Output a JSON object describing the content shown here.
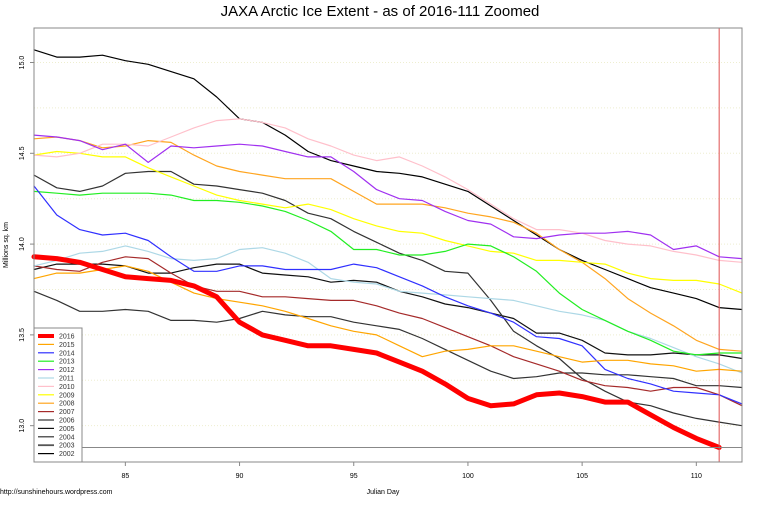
{
  "chart_data": {
    "type": "line",
    "title": "JAXA Arctic Ice Extent - as of 2016-111 Zoomed",
    "xlabel": "Julian Day",
    "ylabel": "Millions sq. km",
    "source_note": "http://sunshinehours.wordpress.com",
    "xlim": [
      81,
      112
    ],
    "ylim": [
      12.8,
      15.19
    ],
    "x_ticks": [
      85,
      90,
      95,
      100,
      105,
      110
    ],
    "x_tick_labels": [
      "85",
      "90",
      "95",
      "100",
      "105",
      "110"
    ],
    "y_ticks": [
      13.0,
      13.5,
      14.0,
      14.5,
      15.0
    ],
    "y_tick_labels": [
      "13.0",
      "13.5",
      "14.0",
      "14.5",
      "15.0"
    ],
    "grid": "horizontal dotted every 0.25",
    "current_day_marker": 111,
    "current_value_marker": 12.88,
    "marker_color": "#E05050",
    "legend_placement": "bottom-left",
    "x_start": 81,
    "series": [
      {
        "name": "2016",
        "color": "#FF0000",
        "width": 5,
        "values": [
          13.93,
          13.92,
          13.9,
          13.86,
          13.82,
          13.81,
          13.8,
          13.77,
          13.71,
          13.57,
          13.5,
          13.47,
          13.44,
          13.44,
          13.42,
          13.4,
          13.35,
          13.3,
          13.23,
          13.15,
          13.11,
          13.12,
          13.17,
          13.18,
          13.16,
          13.13,
          13.13,
          13.06,
          12.99,
          12.93,
          12.88
        ]
      },
      {
        "name": "2015",
        "color": "#FFA500",
        "width": 1.2,
        "values": [
          13.81,
          13.84,
          13.84,
          13.86,
          13.88,
          13.85,
          13.79,
          13.73,
          13.7,
          13.68,
          13.66,
          13.63,
          13.59,
          13.55,
          13.52,
          13.5,
          13.44,
          13.38,
          13.41,
          13.42,
          13.44,
          13.44,
          13.41,
          13.38,
          13.35,
          13.36,
          13.36,
          13.34,
          13.33,
          13.3,
          13.31,
          13.3
        ]
      },
      {
        "name": "2014",
        "color": "#3030FF",
        "width": 1.2,
        "values": [
          14.32,
          14.16,
          14.08,
          14.05,
          14.06,
          14.02,
          13.93,
          13.85,
          13.85,
          13.88,
          13.88,
          13.86,
          13.86,
          13.86,
          13.89,
          13.87,
          13.82,
          13.77,
          13.71,
          13.66,
          13.62,
          13.57,
          13.49,
          13.48,
          13.44,
          13.31,
          13.26,
          13.23,
          13.19,
          13.18,
          13.17,
          13.12
        ]
      },
      {
        "name": "2013",
        "color": "#22EE22",
        "width": 1.2,
        "values": [
          14.29,
          14.28,
          14.27,
          14.28,
          14.28,
          14.28,
          14.27,
          14.24,
          14.24,
          14.23,
          14.21,
          14.18,
          14.13,
          14.07,
          13.97,
          13.97,
          13.94,
          13.94,
          13.96,
          14.0,
          13.99,
          13.93,
          13.85,
          13.73,
          13.64,
          13.58,
          13.52,
          13.47,
          13.41,
          13.39,
          13.4,
          13.4
        ]
      },
      {
        "name": "2012",
        "color": "#A030F0",
        "width": 1.2,
        "values": [
          14.6,
          14.59,
          14.57,
          14.52,
          14.55,
          14.45,
          14.54,
          14.53,
          14.54,
          14.55,
          14.54,
          14.51,
          14.48,
          14.48,
          14.4,
          14.3,
          14.25,
          14.24,
          14.18,
          14.13,
          14.11,
          14.04,
          14.03,
          14.05,
          14.06,
          14.06,
          14.07,
          14.05,
          13.97,
          13.99,
          13.93,
          13.92
        ]
      },
      {
        "name": "2011",
        "color": "#ADD8E6",
        "width": 1.2,
        "values": [
          13.88,
          13.91,
          13.95,
          13.96,
          13.99,
          13.96,
          13.92,
          13.91,
          13.92,
          13.97,
          13.98,
          13.95,
          13.9,
          13.81,
          13.79,
          13.78,
          13.74,
          13.73,
          13.72,
          13.71,
          13.7,
          13.69,
          13.66,
          13.63,
          13.61,
          13.58,
          13.52,
          13.48,
          13.43,
          13.38,
          13.34,
          13.29
        ]
      },
      {
        "name": "2010",
        "color": "#FFC0CB",
        "width": 1.2,
        "values": [
          14.49,
          14.48,
          14.5,
          14.55,
          14.55,
          14.54,
          14.59,
          14.64,
          14.68,
          14.69,
          14.67,
          14.64,
          14.58,
          14.54,
          14.49,
          14.46,
          14.48,
          14.43,
          14.37,
          14.3,
          14.22,
          14.14,
          14.08,
          14.08,
          14.06,
          14.02,
          14.0,
          13.99,
          13.96,
          13.94,
          13.91,
          13.9
        ]
      },
      {
        "name": "2009",
        "color": "#FFFF00",
        "width": 1.2,
        "values": [
          14.49,
          14.51,
          14.5,
          14.48,
          14.48,
          14.42,
          14.37,
          14.32,
          14.27,
          14.24,
          14.22,
          14.2,
          14.22,
          14.19,
          14.14,
          14.1,
          14.07,
          14.06,
          14.02,
          13.99,
          13.96,
          13.95,
          13.91,
          13.91,
          13.9,
          13.89,
          13.84,
          13.81,
          13.8,
          13.8,
          13.78,
          13.73
        ]
      },
      {
        "name": "2008",
        "color": "#FFA520",
        "width": 1.2,
        "values": [
          14.58,
          14.59,
          14.57,
          14.53,
          14.54,
          14.57,
          14.56,
          14.49,
          14.43,
          14.4,
          14.38,
          14.36,
          14.36,
          14.36,
          14.29,
          14.22,
          14.22,
          14.22,
          14.2,
          14.17,
          14.15,
          14.12,
          14.06,
          13.97,
          13.9,
          13.81,
          13.7,
          13.62,
          13.55,
          13.47,
          13.42,
          13.41
        ]
      },
      {
        "name": "2007",
        "color": "#A52A2A",
        "width": 1.2,
        "values": [
          13.88,
          13.86,
          13.85,
          13.9,
          13.93,
          13.92,
          13.84,
          13.77,
          13.74,
          13.74,
          13.71,
          13.71,
          13.7,
          13.69,
          13.69,
          13.66,
          13.62,
          13.59,
          13.54,
          13.49,
          13.44,
          13.38,
          13.34,
          13.3,
          13.25,
          13.22,
          13.21,
          13.19,
          13.21,
          13.21,
          13.17,
          13.11
        ]
      },
      {
        "name": "2006",
        "color": "#333333",
        "width": 1.2,
        "values": [
          14.38,
          14.31,
          14.29,
          14.32,
          14.39,
          14.4,
          14.4,
          14.33,
          14.32,
          14.3,
          14.28,
          14.24,
          14.17,
          14.14,
          14.07,
          14.01,
          13.95,
          13.91,
          13.85,
          13.84,
          13.69,
          13.52,
          13.44,
          13.37,
          13.26,
          13.19,
          13.13,
          13.11,
          13.07,
          13.04,
          13.02,
          13.0
        ]
      },
      {
        "name": "2005",
        "color": "#111111",
        "width": 1.2,
        "values": [
          13.86,
          13.89,
          13.89,
          13.89,
          13.88,
          13.84,
          13.84,
          13.87,
          13.89,
          13.89,
          13.84,
          13.83,
          13.82,
          13.79,
          13.8,
          13.79,
          13.74,
          13.71,
          13.67,
          13.65,
          13.62,
          13.59,
          13.51,
          13.51,
          13.47,
          13.4,
          13.39,
          13.39,
          13.4,
          13.39,
          13.39,
          13.37
        ]
      },
      {
        "name": "2004",
        "color": "#333333",
        "width": 1.2,
        "values": [
          13.74,
          13.69,
          13.63,
          13.63,
          13.64,
          13.63,
          13.58,
          13.58,
          13.57,
          13.59,
          13.63,
          13.61,
          13.6,
          13.6,
          13.57,
          13.55,
          13.53,
          13.48,
          13.42,
          13.36,
          13.3,
          13.26,
          13.27,
          13.29,
          13.29,
          13.28,
          13.28,
          13.27,
          13.26,
          13.22,
          13.22,
          13.21
        ]
      },
      {
        "name": "2003",
        "color": "#555555",
        "width": 1.8,
        "values": []
      },
      {
        "name": "2002",
        "color": "#000000",
        "width": 1.2,
        "values": [
          15.07,
          15.03,
          15.03,
          15.04,
          15.01,
          14.99,
          14.95,
          14.91,
          14.81,
          14.69,
          14.67,
          14.6,
          14.51,
          14.46,
          14.43,
          14.4,
          14.39,
          14.37,
          14.33,
          14.29,
          14.21,
          14.13,
          14.05,
          13.97,
          13.91,
          13.86,
          13.81,
          13.76,
          13.73,
          13.7,
          13.65,
          13.64
        ]
      }
    ]
  }
}
